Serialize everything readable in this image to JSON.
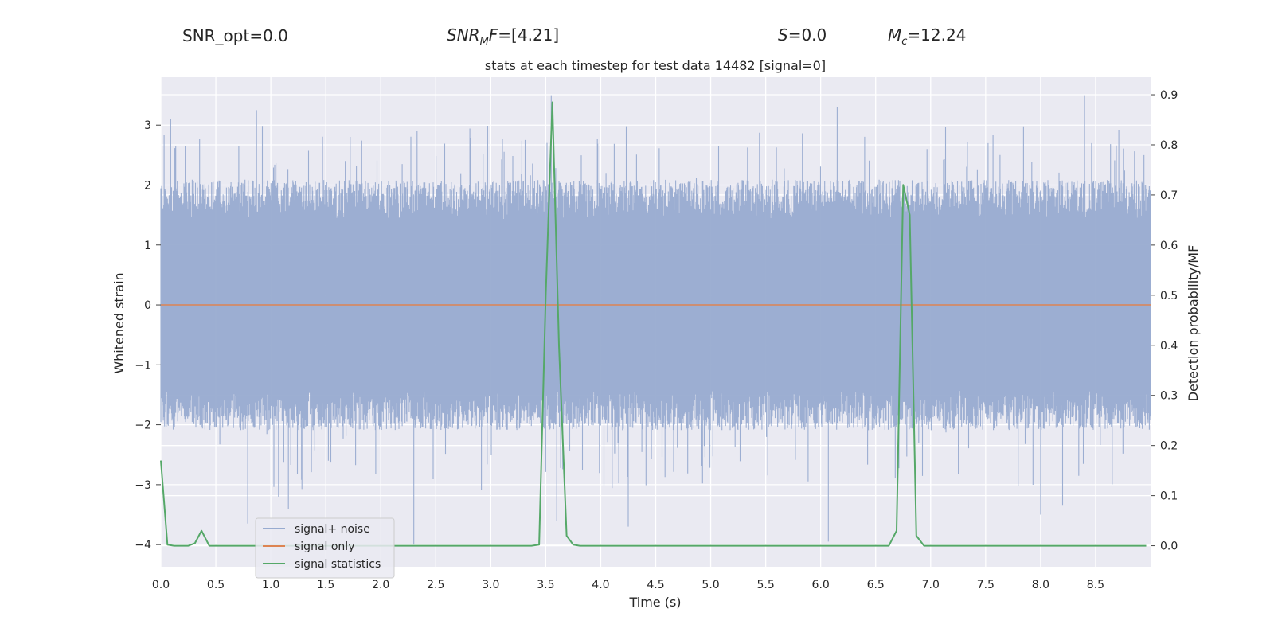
{
  "chart_data": {
    "type": "line",
    "title": "stats at each timestep for test data 14482 [signal=0]",
    "annotations": {
      "snr_opt": "SNR_opt=0.0",
      "snr_mf": {
        "base": "SNR",
        "sub": "M",
        "rest": "F=[4.21]"
      },
      "s": {
        "var": "S",
        "rest": "=0.0"
      },
      "mc": {
        "base": "M",
        "sub": "c",
        "rest": "=12.24"
      }
    },
    "xlabel": "Time (s)",
    "ylabel": "Whitened strain",
    "ylabel_right": "Detection probability/MF",
    "xlim": [
      0.0,
      9.0
    ],
    "ylim": [
      -4.37,
      3.8
    ],
    "ylim_right": [
      -0.042,
      0.935
    ],
    "x_ticks": [
      "0.0",
      "0.5",
      "1.0",
      "1.5",
      "2.0",
      "2.5",
      "3.0",
      "3.5",
      "4.0",
      "4.5",
      "5.0",
      "5.5",
      "6.0",
      "6.5",
      "7.0",
      "7.5",
      "8.0",
      "8.5"
    ],
    "y_ticks": [
      "3",
      "2",
      "1",
      "0",
      "−1",
      "−2",
      "−3",
      "−4"
    ],
    "y_ticks_right": [
      "0.9",
      "0.8",
      "0.7",
      "0.6",
      "0.5",
      "0.4",
      "0.3",
      "0.2",
      "0.1",
      "0.0"
    ],
    "grid": true,
    "legend_placement": "lower-left",
    "series": [
      {
        "name": "signal+ noise",
        "color": "#98abd0",
        "axis": "left",
        "description_of_values": "dense noise band",
        "band_typical": [
          -1.9,
          1.9
        ],
        "extreme_values": [
          {
            "x": 0.09,
            "y": 3.1
          },
          {
            "x": 0.87,
            "y": 3.25
          },
          {
            "x": 0.79,
            "y": -3.65
          },
          {
            "x": 1.07,
            "y": -3.2
          },
          {
            "x": 1.16,
            "y": -3.4
          },
          {
            "x": 2.3,
            "y": -4.0
          },
          {
            "x": 3.55,
            "y": 3.5
          },
          {
            "x": 3.6,
            "y": -3.6
          },
          {
            "x": 4.25,
            "y": -3.7
          },
          {
            "x": 6.07,
            "y": -3.95
          },
          {
            "x": 6.15,
            "y": 3.3
          },
          {
            "x": 8.0,
            "y": -3.5
          },
          {
            "x": 8.2,
            "y": -3.35
          },
          {
            "x": 8.4,
            "y": 3.5
          },
          {
            "x": 8.94,
            "y": 2.5
          }
        ]
      },
      {
        "name": "signal only",
        "color": "#dd8452",
        "axis": "left",
        "x": [
          0.0,
          9.0
        ],
        "values": [
          0.0,
          0.0
        ]
      },
      {
        "name": "signal statistics",
        "color": "#55a868",
        "axis": "right",
        "x": [
          0.0,
          0.06,
          0.12,
          0.19,
          0.25,
          0.31,
          0.37,
          0.44,
          0.5,
          3.37,
          3.44,
          3.5,
          3.56,
          3.62,
          3.69,
          3.75,
          3.81,
          6.56,
          6.62,
          6.69,
          6.75,
          6.81,
          6.87,
          6.94,
          7.0,
          8.96
        ],
        "values": [
          0.17,
          0.002,
          0.0,
          0.0,
          0.0,
          0.005,
          0.03,
          0.0,
          0.0,
          0.0,
          0.002,
          0.5,
          0.885,
          0.4,
          0.02,
          0.002,
          0.0,
          0.0,
          0.0,
          0.03,
          0.72,
          0.66,
          0.02,
          0.0,
          0.0,
          0.0
        ]
      }
    ]
  }
}
